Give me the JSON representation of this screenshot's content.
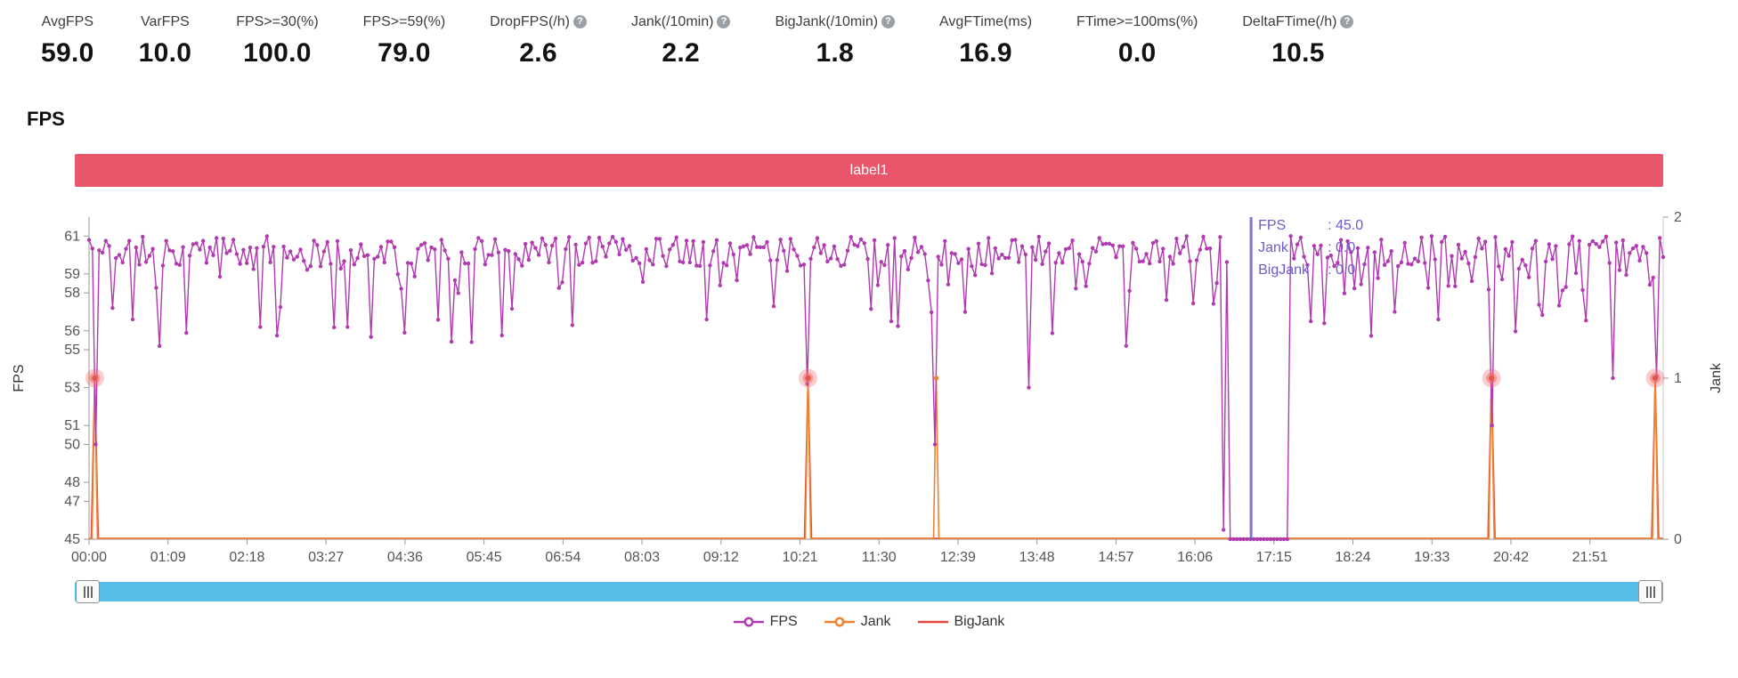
{
  "stats": {
    "items": [
      {
        "label": "AvgFPS",
        "value": "59.0",
        "help": false
      },
      {
        "label": "VarFPS",
        "value": "10.0",
        "help": false
      },
      {
        "label": "FPS>=30(%)",
        "value": "100.0",
        "help": false
      },
      {
        "label": "FPS>=59(%)",
        "value": "79.0",
        "help": false
      },
      {
        "label": "DropFPS(/h)",
        "value": "2.6",
        "help": true
      },
      {
        "label": "Jank(/10min)",
        "value": "2.2",
        "help": true
      },
      {
        "label": "BigJank(/10min)",
        "value": "1.8",
        "help": true
      },
      {
        "label": "AvgFTime(ms)",
        "value": "16.9",
        "help": false
      },
      {
        "label": "FTime>=100ms(%)",
        "value": "0.0",
        "help": false
      },
      {
        "label": "DeltaFTime(/h)",
        "value": "10.5",
        "help": true
      }
    ]
  },
  "help_icon": {
    "glyph": "?"
  },
  "section": {
    "title": "FPS"
  },
  "banner": {
    "label": "label1",
    "color": "#e9556a"
  },
  "scrollbar": {
    "color": "#56bce8"
  },
  "chart_data": {
    "type": "line",
    "title": "FPS",
    "x_ticks": [
      "00:00",
      "01:09",
      "02:18",
      "03:27",
      "04:36",
      "05:45",
      "06:54",
      "08:03",
      "09:12",
      "10:21",
      "11:30",
      "12:39",
      "13:48",
      "14:57",
      "16:06",
      "17:15",
      "18:24",
      "19:33",
      "20:42",
      "21:51"
    ],
    "tick_interval_seconds": 69,
    "x_total_seconds": 1375,
    "left_axis": {
      "label": "FPS",
      "min": 45,
      "max": 62,
      "ticks": [
        61,
        59,
        58,
        56,
        55,
        53,
        51,
        50,
        48,
        47,
        45
      ]
    },
    "right_axis": {
      "label": "Jank",
      "min": 0,
      "max": 2,
      "ticks": [
        2,
        1,
        0
      ]
    },
    "grid": false,
    "series": [
      {
        "name": "FPS",
        "color": "#b03ab0",
        "baseline_range": [
          59.4,
          61.0
        ],
        "noise_seed": 11,
        "points_count": 470,
        "dips": [
          [
            5,
            50.0
          ],
          [
            20,
            57.2
          ],
          [
            37,
            56.6
          ],
          [
            62,
            55.2
          ],
          [
            150,
            56.2
          ],
          [
            225,
            56.2
          ],
          [
            275,
            55.9
          ],
          [
            335,
            55.4
          ],
          [
            422,
            56.3
          ],
          [
            540,
            56.6
          ],
          [
            628,
            53.2
          ],
          [
            700,
            56.5
          ],
          [
            740,
            50.0
          ],
          [
            820,
            53.0
          ],
          [
            905,
            55.2
          ],
          [
            1067,
            56.5
          ],
          [
            1140,
            57.0
          ],
          [
            1178,
            56.6
          ],
          [
            1225,
            51.0
          ],
          [
            1332,
            53.5
          ],
          [
            1368,
            53.6
          ]
        ],
        "flat_low": {
          "from": 995,
          "to": 1048,
          "value": 45.0,
          "entry": [
            990,
            45.5
          ]
        }
      },
      {
        "name": "Jank",
        "color": "#f2812e",
        "baseline_value": 0,
        "spikes": [
          {
            "t": 5,
            "value": 1,
            "big": true
          },
          {
            "t": 628,
            "value": 1,
            "big": true
          },
          {
            "t": 740,
            "value": 1,
            "big": false
          },
          {
            "t": 1225,
            "value": 1,
            "big": true
          },
          {
            "t": 1368,
            "value": 1,
            "big": true
          }
        ]
      },
      {
        "name": "BigJank",
        "color": "#e2483d",
        "halo_outer": "rgba(240,110,110,0.35)",
        "halo_inner": "rgba(240,110,110,0.55)",
        "dot": "#e0584c"
      }
    ],
    "tooltip": {
      "t": 1015,
      "color": "#6b5bce",
      "lines": [
        {
          "label": "FPS",
          "value": "45.0"
        },
        {
          "label": "Jank",
          "value": "0.0"
        },
        {
          "label": "BigJank",
          "value": "0.0"
        }
      ]
    },
    "legend": [
      {
        "label": "FPS",
        "color": "#b03ab0",
        "marker": true
      },
      {
        "label": "Jank",
        "color": "#f2812e",
        "marker": true
      },
      {
        "label": "BigJank",
        "color": "#e2483d",
        "marker": false
      }
    ],
    "legend_position": "bottom-center"
  }
}
